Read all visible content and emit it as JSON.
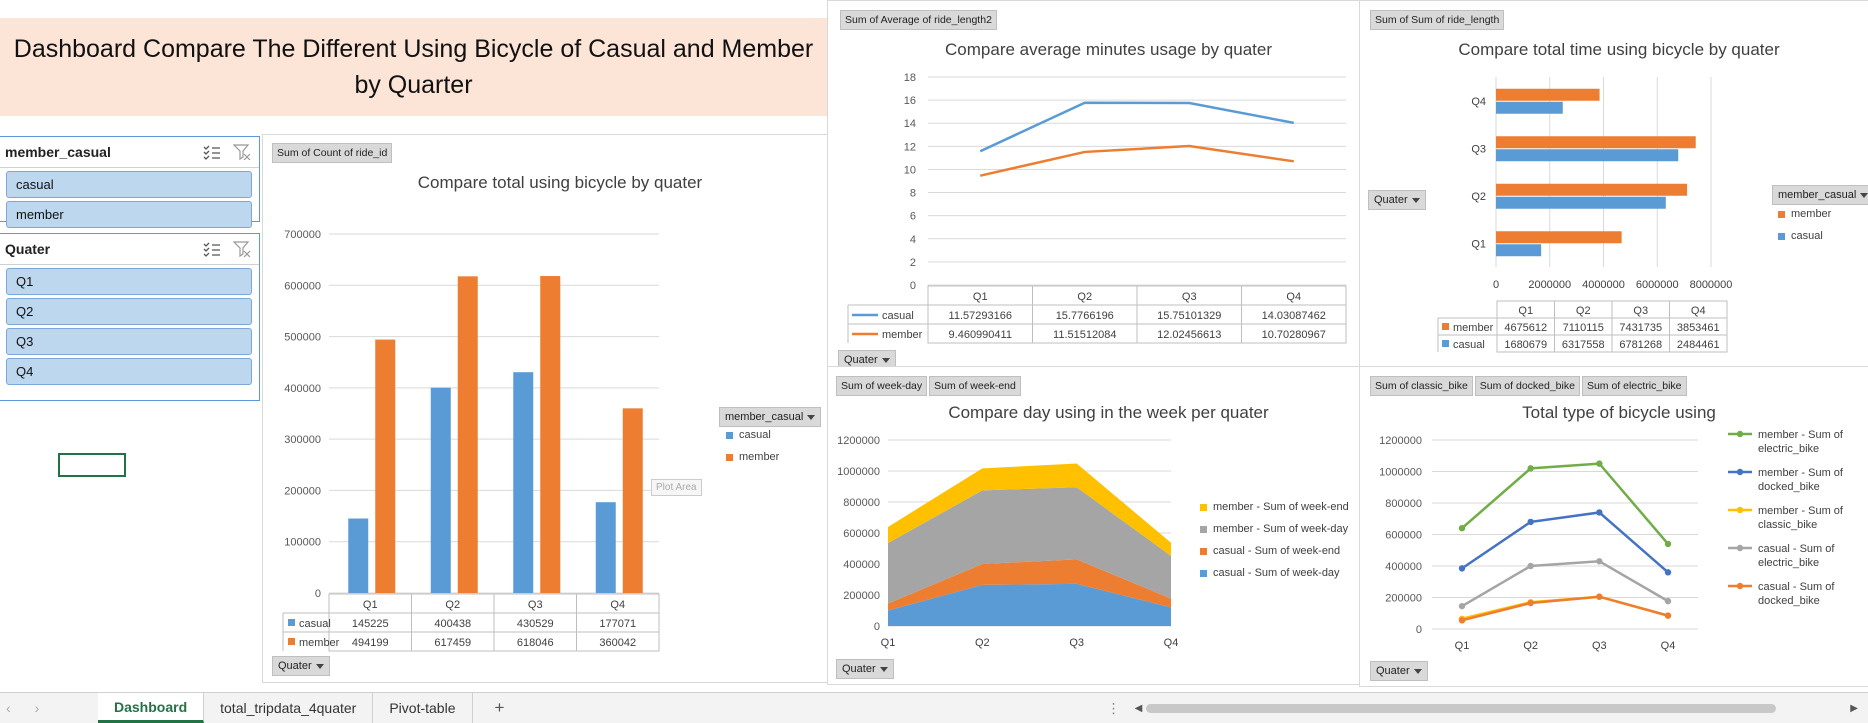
{
  "dashboard_title": "Dashboard Compare The Different Using Bicycle of Casual and Member by Quarter",
  "slicers": [
    {
      "title": "member_casual",
      "items": [
        "casual",
        "member"
      ]
    },
    {
      "title": "Quater",
      "items": [
        "Q1",
        "Q2",
        "Q3",
        "Q4"
      ]
    }
  ],
  "tabs": [
    "Dashboard",
    "total_tripdata_4quater",
    "Pivot-table"
  ],
  "colors": {
    "casual": "#5b9bd5",
    "member": "#ed7d31",
    "yellow": "#ffc000",
    "gray": "#a5a5a5",
    "green": "#70ad47",
    "darkblue": "#4472c4"
  },
  "tooltip": "Plot Area",
  "chart_data": [
    {
      "type": "bar",
      "field_button": "Sum of Count of ride_id",
      "axis_button": "Quater",
      "legend_button": "member_casual",
      "title": "Compare total using bicycle by quater",
      "categories": [
        "Q1",
        "Q2",
        "Q3",
        "Q4"
      ],
      "series": [
        {
          "name": "casual",
          "values": [
            145225,
            400438,
            430529,
            177071
          ]
        },
        {
          "name": "member",
          "values": [
            494199,
            617459,
            618046,
            360042
          ]
        }
      ],
      "yticks": [
        "0",
        "100000",
        "200000",
        "300000",
        "400000",
        "500000",
        "600000",
        "700000"
      ],
      "ylim": [
        0,
        700000
      ],
      "legend": "right",
      "data_table": true
    },
    {
      "type": "line",
      "field_button": "Sum of Average of ride_length2",
      "axis_button": "Quater",
      "title": "Compare average minutes usage by quater",
      "categories": [
        "Q1",
        "Q2",
        "Q3",
        "Q4"
      ],
      "series": [
        {
          "name": "casual",
          "values": [
            "11.57293166",
            "15.7766196",
            "15.75101329",
            "14.03087462"
          ]
        },
        {
          "name": "member",
          "values": [
            "9.460990411",
            "11.51512084",
            "12.02456613",
            "10.70280967"
          ]
        }
      ],
      "yticks": [
        "0",
        "2",
        "4",
        "6",
        "8",
        "10",
        "12",
        "14",
        "16",
        "18"
      ],
      "ylim": [
        0,
        18
      ],
      "data_table": true
    },
    {
      "type": "bar",
      "orientation": "horizontal",
      "field_button": "Sum of Sum of ride_length",
      "axis_button": "Quater",
      "legend_button": "member_casual",
      "title": "Compare total time using bicycle by quater",
      "categories": [
        "Q1",
        "Q2",
        "Q3",
        "Q4"
      ],
      "series": [
        {
          "name": "member",
          "values": [
            4675612,
            7110115,
            7431735,
            3853461
          ]
        },
        {
          "name": "casual",
          "values": [
            1680679,
            6317558,
            6781268,
            2484461
          ]
        }
      ],
      "xticks": [
        "0",
        "2000000",
        "4000000",
        "6000000",
        "8000000"
      ],
      "xlim": [
        0,
        8000000
      ],
      "legend": "right",
      "data_table": true
    },
    {
      "type": "area",
      "stacked": true,
      "field_buttons": [
        "Sum of week-day",
        "Sum of week-end"
      ],
      "axis_button": "Quater",
      "title": "Compare day using in the week per quater",
      "categories": [
        "Q1",
        "Q2",
        "Q3",
        "Q4"
      ],
      "series": [
        {
          "name": "casual - Sum of week-day",
          "values": [
            100000,
            265000,
            272000,
            120000
          ]
        },
        {
          "name": "casual - Sum of week-end",
          "values": [
            45000,
            135000,
            158000,
            57000
          ]
        },
        {
          "name": "member - Sum of week-day",
          "values": [
            390000,
            475000,
            465000,
            275000
          ]
        },
        {
          "name": "member - Sum of week-end",
          "values": [
            104000,
            142000,
            153000,
            85000
          ]
        }
      ],
      "legend_order": [
        "member - Sum of week-end",
        "member - Sum of week-day",
        "casual - Sum of week-end",
        "casual - Sum of week-day"
      ],
      "yticks": [
        "0",
        "200000",
        "400000",
        "600000",
        "800000",
        "1000000",
        "1200000"
      ],
      "ylim": [
        0,
        1200000
      ],
      "legend": "right"
    },
    {
      "type": "line",
      "markers": true,
      "field_buttons": [
        "Sum of classic_bike",
        "Sum of docked_bike",
        "Sum of electric_bike"
      ],
      "axis_button": "Quater",
      "title": "Total type of bicycle using",
      "categories": [
        "Q1",
        "Q2",
        "Q3",
        "Q4"
      ],
      "series": [
        {
          "name": "member - Sum of electric_bike",
          "values": [
            640000,
            1020000,
            1050000,
            540000
          ]
        },
        {
          "name": "member - Sum of docked_bike",
          "values": [
            385000,
            680000,
            740000,
            360000
          ]
        },
        {
          "name": "member - Sum of classic_bike",
          "values": [
            65000,
            170000,
            205000,
            85000
          ]
        },
        {
          "name": "casual - Sum of electric_bike",
          "values": [
            145000,
            400000,
            430000,
            177000
          ]
        },
        {
          "name": "casual - Sum of docked_bike",
          "values": [
            55000,
            165000,
            205000,
            85000
          ]
        }
      ],
      "legend_lines": [
        [
          "member - Sum of",
          "electric_bike"
        ],
        [
          "member - Sum of",
          "docked_bike"
        ],
        [
          "member - Sum of",
          "classic_bike"
        ],
        [
          "casual - Sum of",
          "electric_bike"
        ],
        [
          "casual - Sum of",
          "docked_bike"
        ]
      ],
      "yticks": [
        "0",
        "200000",
        "400000",
        "600000",
        "800000",
        "1000000",
        "1200000"
      ],
      "ylim": [
        0,
        1200000
      ],
      "legend": "right"
    }
  ]
}
